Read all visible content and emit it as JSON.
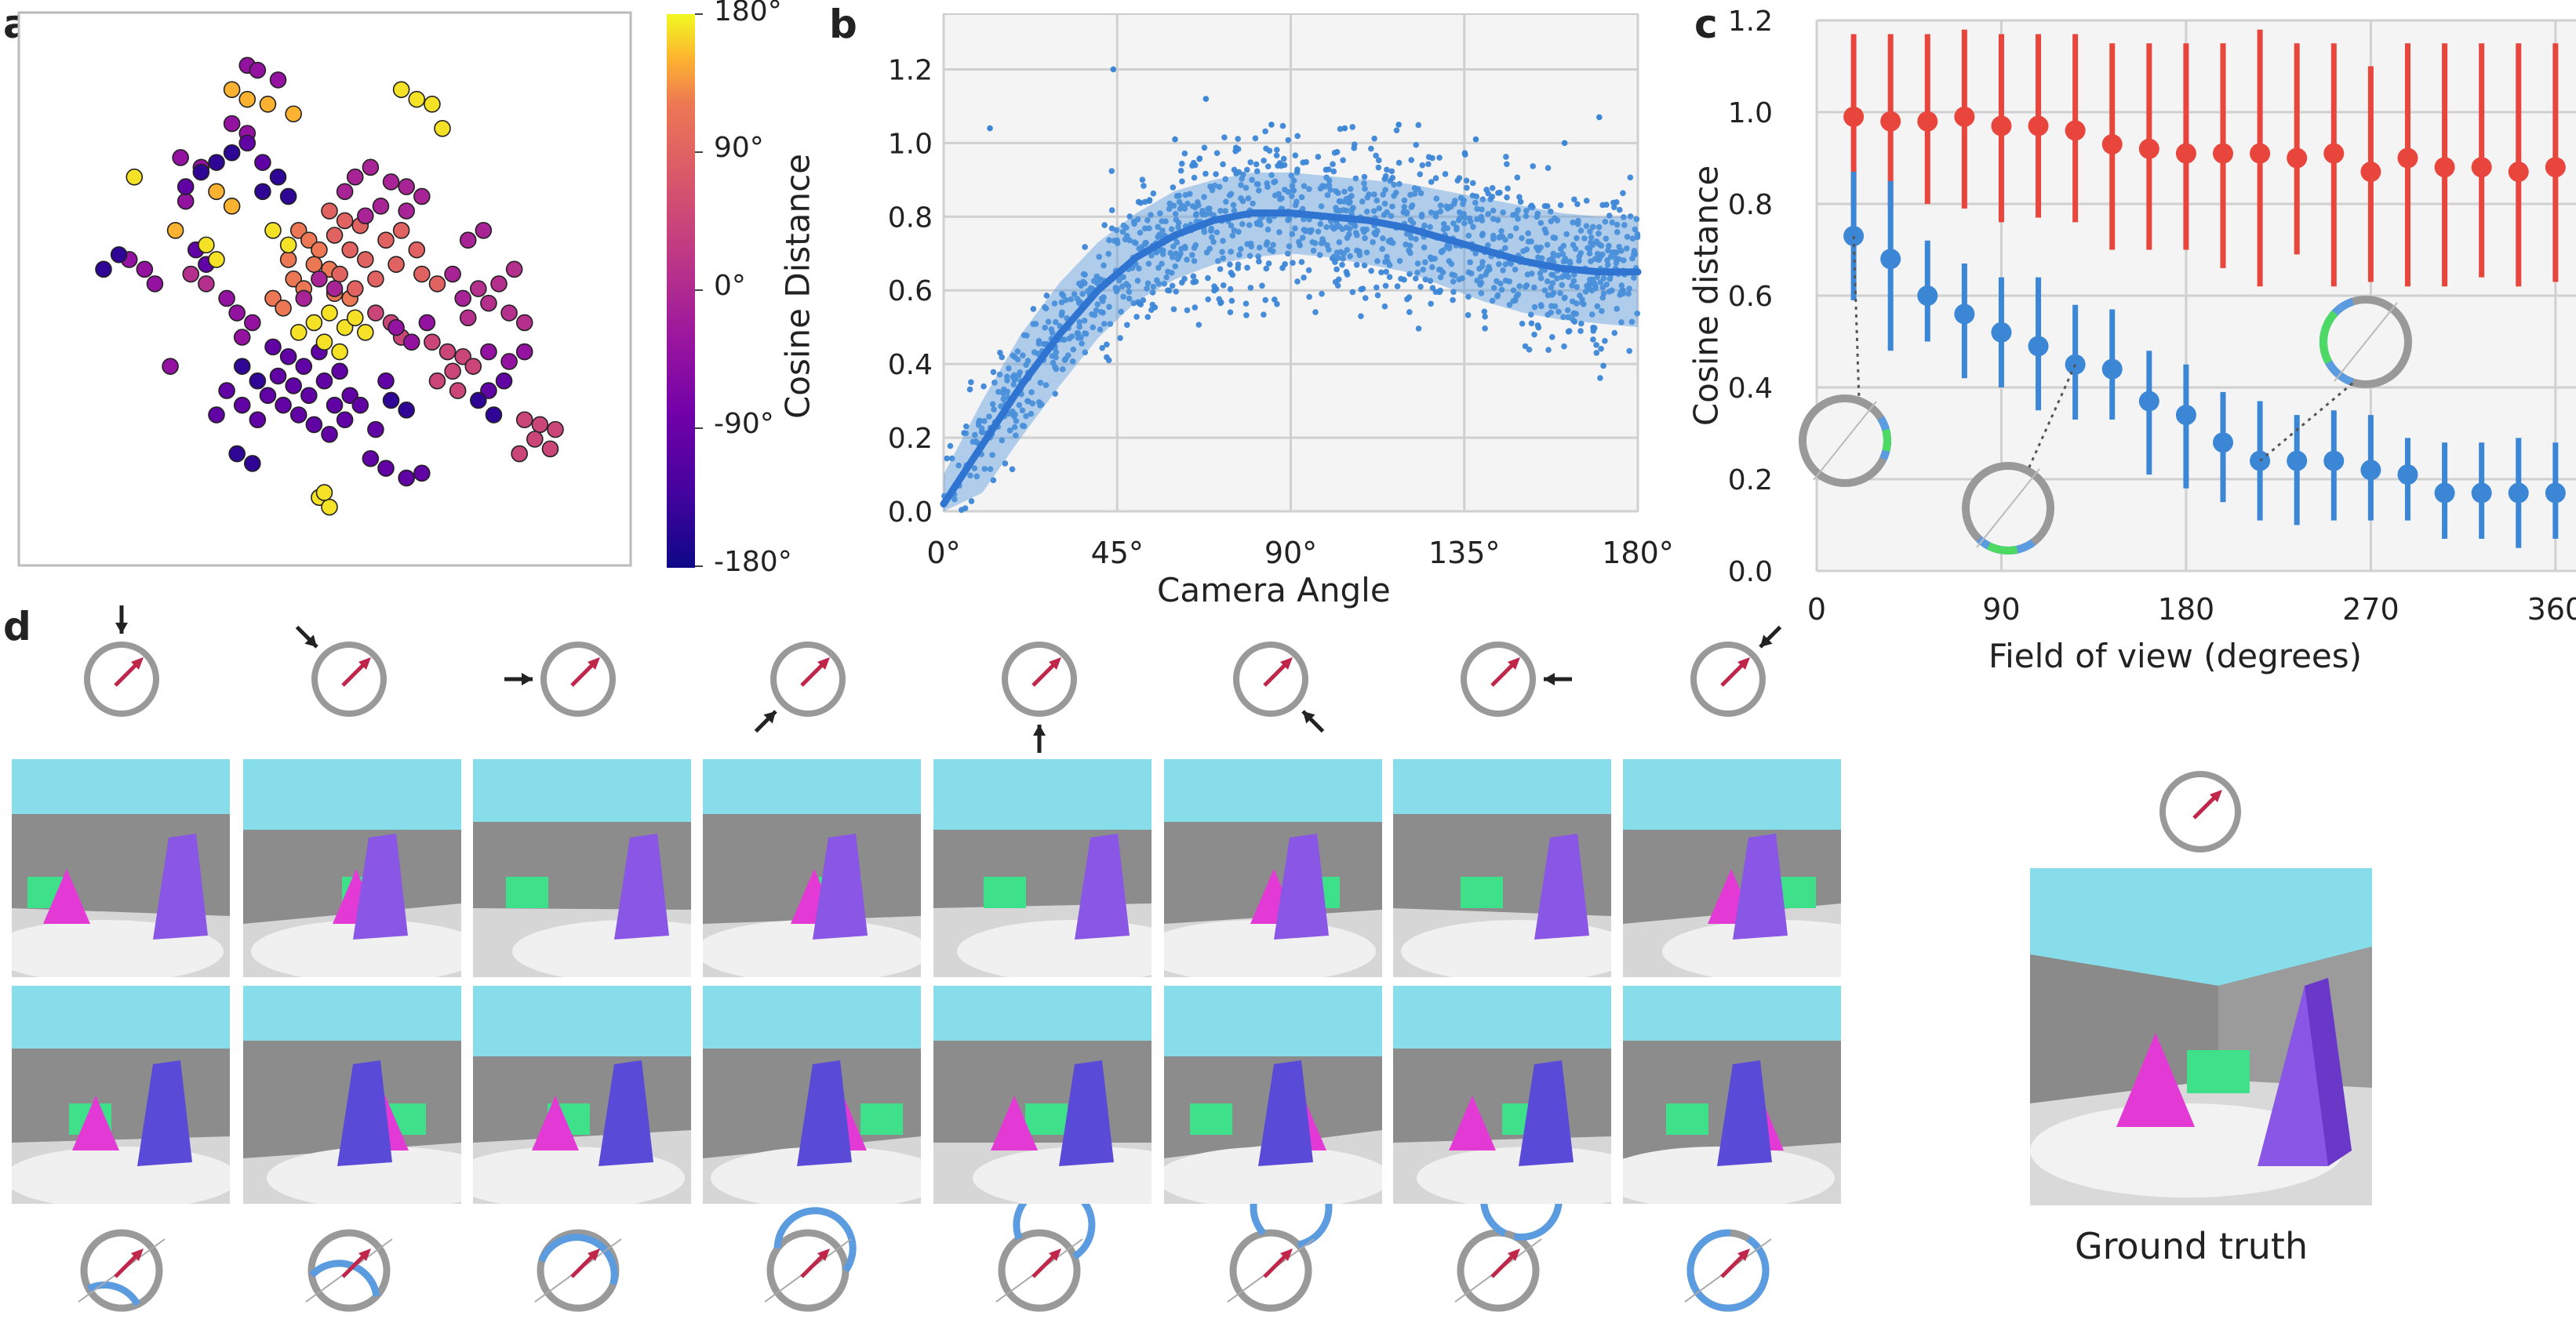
{
  "panels": {
    "a": "a",
    "b": "b",
    "c": "c",
    "d": "d"
  },
  "colorbar": {
    "ticks": [
      "180°",
      "90°",
      "0°",
      "-90°",
      "-180°"
    ]
  },
  "chart_data": [
    {
      "id": "a",
      "type": "scatter",
      "title": "",
      "xlabel": "",
      "ylabel": "",
      "colorbar_ticks": [
        "180°",
        "90°",
        "0°",
        "-90°",
        "-180°"
      ],
      "colorbar_range": [
        -180,
        180
      ],
      "grid": false,
      "clusters": [
        {
          "angle_deg": 150,
          "points": [
            [
              3.6,
              9.3
            ],
            [
              3.9,
              9.1
            ],
            [
              4.3,
              9.0
            ],
            [
              4.8,
              8.8
            ],
            [
              3.3,
              7.2
            ],
            [
              3.6,
              6.9
            ],
            [
              2.5,
              6.4
            ]
          ]
        },
        {
          "angle_deg": 120,
          "points": [
            [
              4.9,
              6.4
            ],
            [
              5.1,
              6.2
            ],
            [
              5.3,
              6.0
            ],
            [
              4.7,
              5.8
            ],
            [
              5.2,
              5.7
            ],
            [
              5.5,
              5.6
            ],
            [
              4.8,
              5.4
            ],
            [
              5.0,
              5.2
            ],
            [
              5.6,
              5.1
            ],
            [
              4.4,
              5.0
            ],
            [
              4.6,
              4.8
            ],
            [
              5.9,
              5.0
            ]
          ]
        },
        {
          "angle_deg": 90,
          "points": [
            [
              5.5,
              6.8
            ],
            [
              5.8,
              6.6
            ],
            [
              6.1,
              6.5
            ],
            [
              5.6,
              6.3
            ],
            [
              5.9,
              6.0
            ],
            [
              6.2,
              5.8
            ],
            [
              5.7,
              5.5
            ],
            [
              6.4,
              5.4
            ],
            [
              6.0,
              5.2
            ],
            [
              6.6,
              6.2
            ],
            [
              6.9,
              6.4
            ],
            [
              7.2,
              6.0
            ],
            [
              6.8,
              5.7
            ],
            [
              7.3,
              5.5
            ],
            [
              7.6,
              5.3
            ]
          ]
        },
        {
          "angle_deg": 45,
          "points": [
            [
              7.5,
              4.1
            ],
            [
              7.8,
              3.9
            ],
            [
              8.1,
              3.8
            ],
            [
              7.9,
              3.5
            ],
            [
              8.3,
              3.6
            ],
            [
              7.6,
              3.3
            ],
            [
              8.0,
              3.1
            ],
            [
              9.3,
              2.5
            ],
            [
              9.6,
              2.4
            ],
            [
              9.9,
              2.3
            ],
            [
              9.5,
              2.1
            ],
            [
              9.8,
              1.9
            ],
            [
              9.2,
              1.8
            ],
            [
              6.4,
              4.7
            ],
            [
              6.7,
              4.5
            ],
            [
              6.9,
              4.2
            ]
          ]
        },
        {
          "angle_deg": 10,
          "points": [
            [
              8.4,
              5.2
            ],
            [
              8.8,
              5.3
            ],
            [
              9.1,
              5.6
            ],
            [
              8.6,
              4.9
            ],
            [
              9.0,
              4.7
            ],
            [
              9.3,
              4.5
            ],
            [
              8.2,
              4.6
            ],
            [
              2.8,
              5.5
            ],
            [
              3.1,
              5.3
            ]
          ]
        },
        {
          "angle_deg": -40,
          "points": [
            [
              3.9,
              9.8
            ],
            [
              4.1,
              9.7
            ],
            [
              4.5,
              9.5
            ],
            [
              3.6,
              8.6
            ],
            [
              3.9,
              8.4
            ],
            [
              2.6,
              7.9
            ],
            [
              3.0,
              7.7
            ],
            [
              2.7,
              7.0
            ],
            [
              3.5,
              5.0
            ],
            [
              3.7,
              4.7
            ],
            [
              4.0,
              4.5
            ],
            [
              3.8,
              4.2
            ],
            [
              6.8,
              4.4
            ],
            [
              7.1,
              4.1
            ],
            [
              7.4,
              4.5
            ],
            [
              8.6,
              3.9
            ],
            [
              9.0,
              3.7
            ],
            [
              9.3,
              3.9
            ],
            [
              1.6,
              5.8
            ],
            [
              1.9,
              5.6
            ],
            [
              2.1,
              5.3
            ],
            [
              2.4,
              3.6
            ]
          ]
        },
        {
          "angle_deg": -100,
          "points": [
            [
              4.4,
              4.0
            ],
            [
              4.7,
              3.8
            ],
            [
              5.0,
              3.6
            ],
            [
              5.3,
              3.9
            ],
            [
              4.5,
              3.4
            ],
            [
              4.8,
              3.2
            ],
            [
              5.1,
              3.0
            ],
            [
              5.4,
              3.3
            ],
            [
              5.7,
              3.5
            ],
            [
              4.3,
              3.0
            ],
            [
              4.6,
              2.8
            ],
            [
              4.9,
              2.6
            ],
            [
              5.2,
              2.4
            ],
            [
              5.6,
              2.8
            ],
            [
              5.9,
              3.0
            ],
            [
              4.1,
              2.5
            ],
            [
              3.8,
              2.8
            ],
            [
              3.5,
              3.1
            ],
            [
              3.3,
              2.6
            ],
            [
              5.5,
              2.2
            ],
            [
              5.8,
              2.5
            ],
            [
              6.1,
              2.8
            ],
            [
              6.4,
              2.3
            ],
            [
              6.6,
              3.3
            ],
            [
              2.9,
              6.0
            ],
            [
              3.1,
              5.7
            ],
            [
              2.7,
              7.3
            ],
            [
              6.3,
              1.7
            ],
            [
              6.6,
              1.5
            ],
            [
              7.0,
              1.3
            ],
            [
              7.3,
              1.4
            ],
            [
              8.6,
              3.1
            ],
            [
              8.9,
              3.3
            ],
            [
              3.9,
              8.2
            ],
            [
              4.2,
              7.8
            ]
          ]
        },
        {
          "angle_deg": -150,
          "points": [
            [
              3.0,
              7.6
            ],
            [
              3.3,
              7.8
            ],
            [
              3.6,
              8.0
            ],
            [
              4.2,
              7.2
            ],
            [
              4.5,
              7.5
            ],
            [
              4.7,
              7.1
            ],
            [
              3.8,
              3.6
            ],
            [
              4.1,
              3.3
            ],
            [
              3.7,
              1.8
            ],
            [
              4.0,
              1.6
            ],
            [
              6.7,
              2.9
            ],
            [
              7.0,
              2.7
            ],
            [
              8.4,
              2.9
            ],
            [
              8.7,
              2.6
            ],
            [
              1.1,
              5.6
            ],
            [
              1.4,
              5.9
            ]
          ]
        },
        {
          "angle_deg": 170,
          "points": [
            [
              4.9,
              4.3
            ],
            [
              5.2,
              4.5
            ],
            [
              5.5,
              4.7
            ],
            [
              5.8,
              4.4
            ],
            [
              6.0,
              4.6
            ],
            [
              5.4,
              4.1
            ],
            [
              5.7,
              3.9
            ],
            [
              6.2,
              4.3
            ],
            [
              4.4,
              6.4
            ],
            [
              4.7,
              6.1
            ],
            [
              3.3,
              5.8
            ],
            [
              3.1,
              6.1
            ],
            [
              5.3,
              0.9
            ],
            [
              5.5,
              0.7
            ],
            [
              5.4,
              1.0
            ],
            [
              6.9,
              9.3
            ],
            [
              7.2,
              9.1
            ],
            [
              7.5,
              9.0
            ],
            [
              7.7,
              8.5
            ],
            [
              1.7,
              7.5
            ]
          ]
        },
        {
          "angle_deg": -10,
          "points": [
            [
              5.0,
              5.0
            ],
            [
              5.3,
              5.4
            ],
            [
              5.6,
              5.2
            ],
            [
              6.2,
              6.7
            ],
            [
              6.5,
              6.9
            ],
            [
              7.0,
              7.3
            ],
            [
              6.7,
              7.4
            ],
            [
              7.3,
              7.1
            ],
            [
              7.0,
              6.8
            ],
            [
              5.8,
              7.2
            ],
            [
              6.0,
              7.5
            ],
            [
              6.3,
              7.7
            ],
            [
              8.2,
              6.2
            ],
            [
              8.5,
              6.4
            ],
            [
              7.9,
              5.5
            ],
            [
              8.1,
              5.0
            ]
          ]
        }
      ]
    },
    {
      "id": "b",
      "type": "scatter",
      "title": "",
      "xlabel": "Camera Angle",
      "ylabel": "Cosine Distance",
      "xlim": [
        0,
        180
      ],
      "ylim": [
        0,
        1.35
      ],
      "xticks": [
        "0°",
        "45°",
        "90°",
        "135°",
        "180°"
      ],
      "yticks": [
        "0.0",
        "0.2",
        "0.4",
        "0.6",
        "0.8",
        "1.0",
        "1.2"
      ],
      "grid": true,
      "fit_curve": {
        "x": [
          0,
          10,
          20,
          30,
          40,
          50,
          60,
          70,
          80,
          90,
          100,
          110,
          120,
          130,
          140,
          150,
          160,
          170,
          180
        ],
        "y": [
          0.02,
          0.18,
          0.34,
          0.48,
          0.6,
          0.69,
          0.75,
          0.79,
          0.81,
          0.81,
          0.8,
          0.79,
          0.77,
          0.74,
          0.71,
          0.68,
          0.66,
          0.65,
          0.65
        ]
      },
      "confidence_band": {
        "x": [
          0,
          10,
          20,
          30,
          40,
          50,
          60,
          70,
          80,
          90,
          100,
          110,
          120,
          130,
          140,
          150,
          160,
          170,
          180
        ],
        "lower": [
          -0.05,
          0.05,
          0.2,
          0.34,
          0.47,
          0.57,
          0.63,
          0.67,
          0.69,
          0.7,
          0.69,
          0.67,
          0.65,
          0.61,
          0.57,
          0.54,
          0.52,
          0.51,
          0.5
        ],
        "upper": [
          0.1,
          0.3,
          0.48,
          0.62,
          0.73,
          0.81,
          0.87,
          0.9,
          0.92,
          0.92,
          0.91,
          0.9,
          0.89,
          0.87,
          0.85,
          0.83,
          0.81,
          0.8,
          0.8
        ]
      },
      "outliers": [
        [
          12,
          1.04
        ],
        [
          44,
          1.2
        ],
        [
          60,
          1.01
        ],
        [
          68,
          1.12
        ],
        [
          85,
          1.05
        ],
        [
          104,
          1.04
        ],
        [
          118,
          1.05
        ],
        [
          138,
          1.01
        ],
        [
          161,
          1.0
        ],
        [
          170,
          1.07
        ]
      ]
    },
    {
      "id": "c",
      "type": "scatter",
      "title": "",
      "xlabel": "Field of view (degrees)",
      "ylabel": "Cosine distance",
      "xlim": [
        0,
        370
      ],
      "ylim": [
        0,
        1.2
      ],
      "xticks": [
        "0",
        "90",
        "180",
        "270",
        "360"
      ],
      "yticks": [
        "0.0",
        "0.2",
        "0.4",
        "0.6",
        "0.8",
        "1.0",
        "1.2"
      ],
      "grid": true,
      "series": [
        {
          "x": [
            18,
            36,
            54,
            72,
            90,
            108,
            126,
            144,
            162,
            180,
            198,
            216,
            234,
            252,
            270,
            288,
            306,
            324,
            342,
            360
          ],
          "y": [
            0.99,
            0.98,
            0.98,
            0.99,
            0.97,
            0.97,
            0.96,
            0.93,
            0.92,
            0.91,
            0.91,
            0.91,
            0.9,
            0.91,
            0.87,
            0.9,
            0.88,
            0.88,
            0.87,
            0.88
          ],
          "lower": [
            0.79,
            0.79,
            0.8,
            0.79,
            0.76,
            0.77,
            0.76,
            0.7,
            0.7,
            0.7,
            0.66,
            0.62,
            0.69,
            0.62,
            0.63,
            0.62,
            0.62,
            0.64,
            0.62,
            0.63
          ],
          "upper": [
            1.17,
            1.17,
            1.17,
            1.18,
            1.17,
            1.17,
            1.17,
            1.15,
            1.15,
            1.15,
            1.15,
            1.18,
            1.15,
            1.15,
            1.1,
            1.15,
            1.15,
            1.15,
            1.15,
            1.15
          ]
        },
        {
          "x": [
            18,
            36,
            54,
            72,
            90,
            108,
            126,
            144,
            162,
            180,
            198,
            216,
            234,
            252,
            270,
            288,
            306,
            324,
            342,
            360
          ],
          "y": [
            0.73,
            0.68,
            0.6,
            0.56,
            0.52,
            0.49,
            0.45,
            0.44,
            0.37,
            0.34,
            0.28,
            0.24,
            0.24,
            0.24,
            0.22,
            0.21,
            0.17,
            0.17,
            0.17,
            0.17
          ],
          "lower": [
            0.59,
            0.48,
            0.5,
            0.42,
            0.4,
            0.35,
            0.33,
            0.33,
            0.21,
            0.18,
            0.15,
            0.11,
            0.1,
            0.11,
            0.11,
            0.11,
            0.07,
            0.07,
            0.05,
            0.07
          ],
          "upper": [
            0.87,
            0.85,
            0.72,
            0.67,
            0.64,
            0.64,
            0.58,
            0.57,
            0.48,
            0.45,
            0.39,
            0.37,
            0.34,
            0.35,
            0.34,
            0.29,
            0.28,
            0.28,
            0.29,
            0.28
          ]
        }
      ]
    }
  ],
  "panel_d": {
    "view_arrow_angles": [
      0,
      315,
      270,
      225,
      180,
      135,
      90,
      45
    ],
    "ground_truth_label": "Ground truth"
  }
}
